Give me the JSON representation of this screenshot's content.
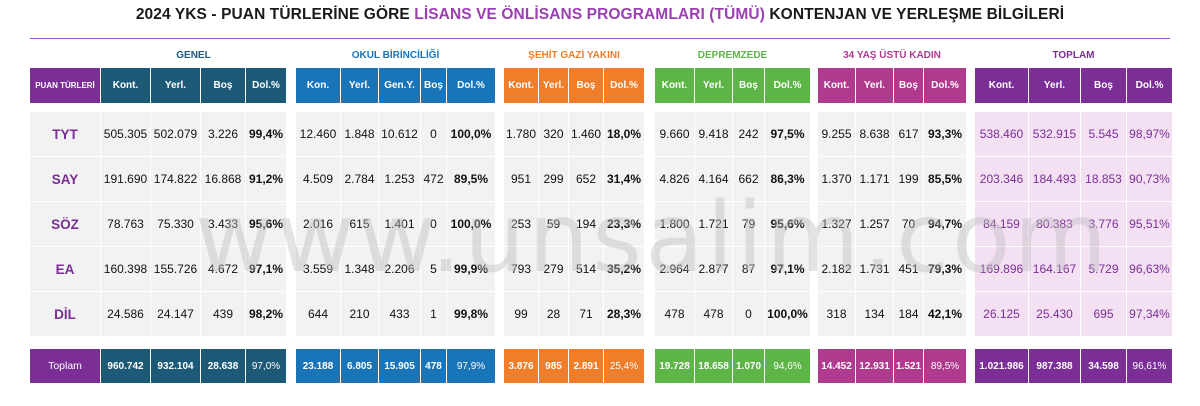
{
  "title": {
    "prefix": "2024 YKS - PUAN TÜRLERİNE GÖRE ",
    "highlight": "LİSANS VE ÖNLİSANS PROGRAMLARI (TÜMÜ)",
    "suffix": " KONTENJAN VE YERLEŞME BİLGİLERİ"
  },
  "watermark": "www.unsalim.com",
  "colors": {
    "purple": "#7a2e96",
    "genel": "#1d5a78",
    "okul": "#1a74b8",
    "sehit": "#f07d2a",
    "deprem": "#5db548",
    "kadin": "#b03a8e",
    "toplam": "#7a2e96"
  },
  "label_header": "PUAN TÜRLERİ",
  "label_rows": [
    "TYT",
    "SAY",
    "SÖZ",
    "EA",
    "DİL"
  ],
  "label_total": "Toplam",
  "groups": {
    "genel": {
      "title": "GENEL",
      "headers": [
        "Kont.",
        "Yerl.",
        "Boş",
        "Dol.%"
      ],
      "rows": [
        [
          "505.305",
          "502.079",
          "3.226",
          "99,4%"
        ],
        [
          "191.690",
          "174.822",
          "16.868",
          "91,2%"
        ],
        [
          "78.763",
          "75.330",
          "3.433",
          "95,6%"
        ],
        [
          "160.398",
          "155.726",
          "4.672",
          "97,1%"
        ],
        [
          "24.586",
          "24.147",
          "439",
          "98,2%"
        ]
      ],
      "total": [
        "960.742",
        "932.104",
        "28.638",
        "97,0%"
      ]
    },
    "okul": {
      "title": "OKUL BİRİNCİLİĞİ",
      "headers": [
        "Kon.",
        "Yerl.",
        "Gen.Y.",
        "Boş",
        "Dol.%"
      ],
      "rows": [
        [
          "12.460",
          "1.848",
          "10.612",
          "0",
          "100,0%"
        ],
        [
          "4.509",
          "2.784",
          "1.253",
          "472",
          "89,5%"
        ],
        [
          "2.016",
          "615",
          "1.401",
          "0",
          "100,0%"
        ],
        [
          "3.559",
          "1.348",
          "2.206",
          "5",
          "99,9%"
        ],
        [
          "644",
          "210",
          "433",
          "1",
          "99,8%"
        ]
      ],
      "total": [
        "23.188",
        "6.805",
        "15.905",
        "478",
        "97,9%"
      ]
    },
    "sehit": {
      "title": "ŞEHİT GAZİ YAKINI",
      "headers": [
        "Kont.",
        "Yerl.",
        "Boş",
        "Dol.%"
      ],
      "rows": [
        [
          "1.780",
          "320",
          "1.460",
          "18,0%"
        ],
        [
          "951",
          "299",
          "652",
          "31,4%"
        ],
        [
          "253",
          "59",
          "194",
          "23,3%"
        ],
        [
          "793",
          "279",
          "514",
          "35,2%"
        ],
        [
          "99",
          "28",
          "71",
          "28,3%"
        ]
      ],
      "total": [
        "3.876",
        "985",
        "2.891",
        "25,4%"
      ]
    },
    "deprem": {
      "title": "DEPREMZEDE",
      "headers": [
        "Kont.",
        "Yerl.",
        "Boş",
        "Dol.%"
      ],
      "rows": [
        [
          "9.660",
          "9.418",
          "242",
          "97,5%"
        ],
        [
          "4.826",
          "4.164",
          "662",
          "86,3%"
        ],
        [
          "1.800",
          "1.721",
          "79",
          "95,6%"
        ],
        [
          "2.964",
          "2.877",
          "87",
          "97,1%"
        ],
        [
          "478",
          "478",
          "0",
          "100,0%"
        ]
      ],
      "total": [
        "19.728",
        "18.658",
        "1.070",
        "94,6%"
      ]
    },
    "kadin": {
      "title": "34 YAŞ ÜSTÜ KADIN",
      "headers": [
        "Kont.",
        "Yerl.",
        "Boş",
        "Dol.%"
      ],
      "rows": [
        [
          "9.255",
          "8.638",
          "617",
          "93,3%"
        ],
        [
          "1.370",
          "1.171",
          "199",
          "85,5%"
        ],
        [
          "1.327",
          "1.257",
          "70",
          "94,7%"
        ],
        [
          "2.182",
          "1.731",
          "451",
          "79,3%"
        ],
        [
          "318",
          "134",
          "184",
          "42,1%"
        ]
      ],
      "total": [
        "14.452",
        "12.931",
        "1.521",
        "89,5%"
      ]
    },
    "toplam": {
      "title": "TOPLAM",
      "headers": [
        "Kont.",
        "Yerl.",
        "Boş",
        "Dol.%"
      ],
      "rows": [
        [
          "538.460",
          "532.915",
          "5.545",
          "98,97%"
        ],
        [
          "203.346",
          "184.493",
          "18.853",
          "90,73%"
        ],
        [
          "84.159",
          "80.383",
          "3.776",
          "95,51%"
        ],
        [
          "169.896",
          "164.167",
          "5.729",
          "96,63%"
        ],
        [
          "26.125",
          "25.430",
          "695",
          "97,34%"
        ]
      ],
      "total": [
        "1.021.986",
        "987.388",
        "34.598",
        "96,61%"
      ]
    }
  }
}
